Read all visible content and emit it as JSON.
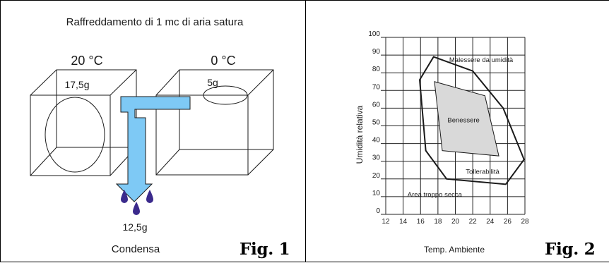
{
  "fig1": {
    "title": "Raffreddamento di 1 mc di aria satura",
    "temp_warm": "20 °C",
    "temp_cold": "0 °C",
    "water_warm": "17,5g",
    "water_cold": "5g",
    "water_condensed": "12,5g",
    "caption": "Condensa",
    "fig_label": "Fig. 1",
    "colors": {
      "arrow": "#7ec9f5",
      "drop": "#3b2a8c"
    },
    "icons": [
      "warm-air-cube-icon",
      "cold-air-cube-icon",
      "flow-arrow-icon",
      "water-drop-icon"
    ]
  },
  "fig2": {
    "ylabel": "Umidità relativa",
    "xlabel": "Temp. Ambiente",
    "fig_label": "Fig. 2",
    "x_ticks": [
      "12",
      "14",
      "16",
      "18",
      "20",
      "22",
      "24",
      "26",
      "28"
    ],
    "y_ticks": [
      "0",
      "10",
      "20",
      "30",
      "40",
      "50",
      "60",
      "70",
      "80",
      "90",
      "100"
    ],
    "zones": {
      "humid": "Malessere da umidità",
      "comfort": "Benessere",
      "tolerable": "Tollerabilità",
      "dry": "Area troppo secca"
    }
  },
  "chart_data": {
    "type": "area",
    "xlabel": "Temp. Ambiente",
    "ylabel": "Umidità relativa",
    "xlim": [
      12,
      28
    ],
    "ylim": [
      0,
      100
    ],
    "grid": true,
    "x_ticks": [
      12,
      14,
      16,
      18,
      20,
      22,
      24,
      26,
      28
    ],
    "y_ticks": [
      0,
      10,
      20,
      30,
      40,
      50,
      60,
      70,
      80,
      90,
      100
    ],
    "series": [
      {
        "name": "Tollerabilità",
        "fill": "none",
        "points": [
          [
            17.5,
            89
          ],
          [
            22,
            81
          ],
          [
            25.5,
            60
          ],
          [
            27.9,
            31
          ],
          [
            25.8,
            17
          ],
          [
            19,
            20
          ],
          [
            16.6,
            36
          ],
          [
            15.9,
            76
          ]
        ]
      },
      {
        "name": "Benessere",
        "fill": "#d9d9d9",
        "points": [
          [
            17.6,
            75
          ],
          [
            23.4,
            67
          ],
          [
            25,
            33
          ],
          [
            18.5,
            36
          ]
        ]
      }
    ],
    "annotations": [
      {
        "text": "Malessere da umidità",
        "x": 19.3,
        "y": 86
      },
      {
        "text": "Benessere",
        "x": 19.1,
        "y": 52
      },
      {
        "text": "Tollerabilità",
        "x": 21.2,
        "y": 23
      },
      {
        "text": "Area troppo secca",
        "x": 14.5,
        "y": 10
      }
    ]
  }
}
